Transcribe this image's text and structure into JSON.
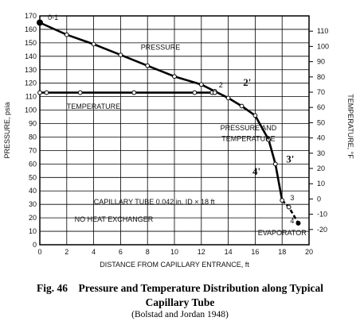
{
  "chart_data": {
    "type": "line",
    "xlabel": "DISTANCE FROM CAPILLARY ENTRANCE, ft",
    "ylabel": "PRESSURE, psia",
    "y2label": "TEMPERATURE, °F",
    "xlim": [
      0,
      20
    ],
    "ylim": [
      0,
      170
    ],
    "y2lim": [
      -30,
      120
    ],
    "grid": true,
    "x_ticks": [
      "0",
      "2",
      "4",
      "6",
      "8",
      "10",
      "12",
      "14",
      "16",
      "18",
      "20"
    ],
    "y_ticks": [
      "0",
      "10",
      "20",
      "30",
      "40",
      "50",
      "60",
      "70",
      "80",
      "90",
      "100",
      "110",
      "120",
      "130",
      "140",
      "150",
      "160",
      "170"
    ],
    "y2_ticks": [
      "-20",
      "-10",
      "0",
      "10",
      "20",
      "30",
      "40",
      "50",
      "60",
      "70",
      "80",
      "90",
      "100",
      "110"
    ],
    "series": [
      {
        "name": "PRESSURE",
        "points": [
          [
            0,
            165
          ],
          [
            2,
            156
          ],
          [
            4,
            149
          ],
          [
            6,
            141
          ],
          [
            8,
            133
          ],
          [
            10,
            125
          ],
          [
            12,
            119
          ],
          [
            13,
            114
          ],
          [
            14,
            109
          ],
          [
            15,
            103
          ],
          [
            16,
            96
          ],
          [
            17,
            78
          ],
          [
            17.5,
            60
          ],
          [
            18,
            33
          ],
          [
            18.5,
            28
          ],
          [
            19.2,
            16
          ]
        ]
      },
      {
        "name": "TEMPERATURE",
        "points": [
          [
            0,
            113
          ],
          [
            0.5,
            113
          ],
          [
            3,
            113
          ],
          [
            7,
            113
          ],
          [
            11.5,
            113
          ],
          [
            12.8,
            113
          ],
          [
            13,
            113
          ]
        ]
      }
    ],
    "annotations": [
      {
        "text": "PRESSURE AND",
        "x": 15.5,
        "y": 85
      },
      {
        "text": "TEMPERATURE",
        "x": 15.5,
        "y": 77
      },
      {
        "text": "CAPILLARY TUBE 0.042 in. ID × 18 ft",
        "x": 8.5,
        "y": 30
      },
      {
        "text": "NO HEAT EXCHANGER",
        "x": 5.5,
        "y": 17
      },
      {
        "text": "EVAPORATOR",
        "x": 18,
        "y": 7
      }
    ],
    "point_labels": [
      {
        "text": "0-1",
        "x": 0.6,
        "y": 167
      },
      {
        "text": "2",
        "x": 13.3,
        "y": 117
      },
      {
        "text": "2'",
        "x": 15.1,
        "y": 118
      },
      {
        "text": "3'",
        "x": 18.3,
        "y": 61
      },
      {
        "text": "4'",
        "x": 15.8,
        "y": 52
      },
      {
        "text": "3",
        "x": 18.6,
        "y": 33
      },
      {
        "text": "4",
        "x": 18.6,
        "y": 16
      }
    ]
  },
  "caption": {
    "line1": "Fig. 46    Pressure and Temperature Distribution along Typical",
    "line2": "Capillary Tube",
    "source": "(Bolstad and Jordan 1948)"
  }
}
